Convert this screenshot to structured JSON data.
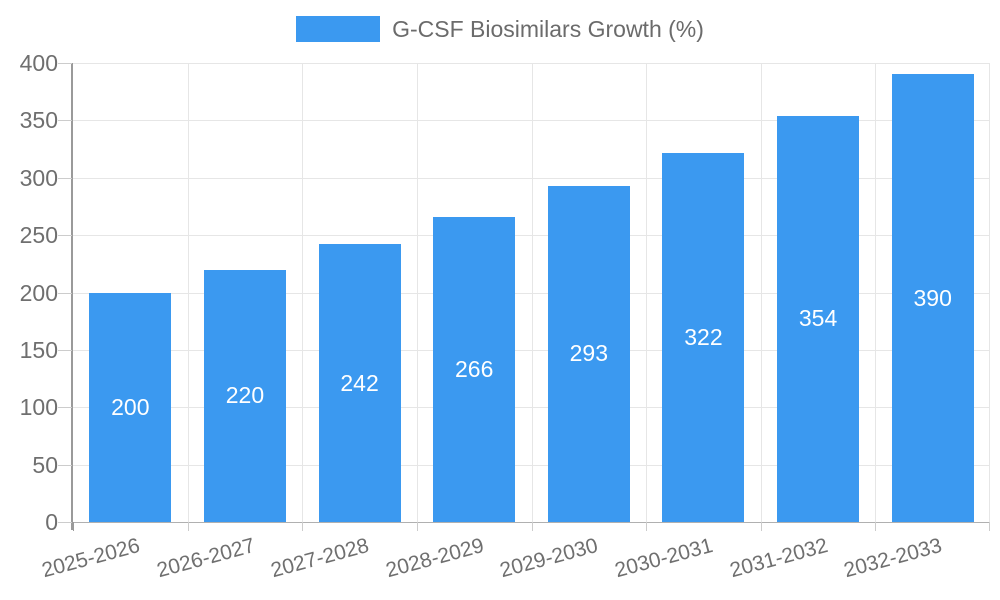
{
  "chart_data": {
    "type": "bar",
    "title": "G-CSF Biosimilars Growth (%)",
    "categories": [
      "2025-2026",
      "2026-2027",
      "2027-2028",
      "2028-2029",
      "2029-2030",
      "2030-2031",
      "2031-2032",
      "2032-2033"
    ],
    "values": [
      200,
      220,
      242,
      266,
      293,
      322,
      354,
      390
    ],
    "ylim": [
      0,
      400
    ],
    "y_ticks": [
      0,
      50,
      100,
      150,
      200,
      250,
      300,
      350,
      400
    ],
    "grid": true,
    "legend_position": "top-center",
    "x_label_rotation_deg": -15,
    "colors": {
      "bar": "#3b99f0",
      "value_label": "#ffffff",
      "axis_text": "#6f6f6f",
      "legend_text": "#6b6b6b",
      "gridline": "#e6e6e6",
      "axis_line": "#9a9a9a",
      "baseline": "#b0b0b0",
      "tick": "#cccccc",
      "background": "#ffffff"
    }
  }
}
